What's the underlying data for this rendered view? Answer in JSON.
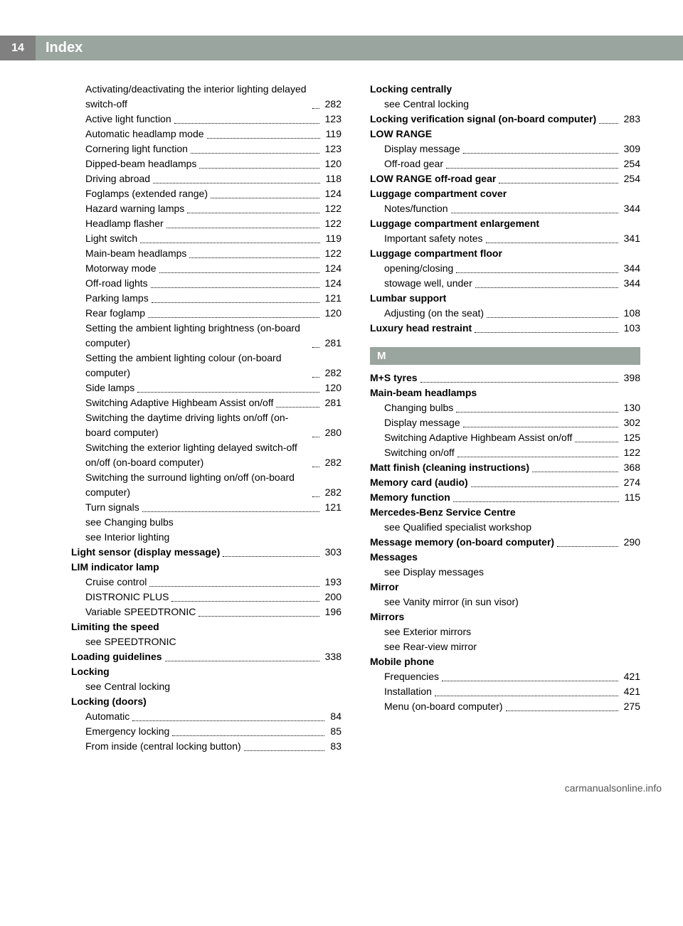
{
  "header": {
    "page_number": "14",
    "title": "Index"
  },
  "left_column": [
    {
      "type": "entry",
      "sub": true,
      "label": "Activating/deactivating the interior lighting delayed switch-off",
      "page": "282"
    },
    {
      "type": "entry",
      "sub": true,
      "label": "Active light function",
      "page": "123"
    },
    {
      "type": "entry",
      "sub": true,
      "label": "Automatic headlamp mode",
      "page": "119"
    },
    {
      "type": "entry",
      "sub": true,
      "label": "Cornering light function",
      "page": "123"
    },
    {
      "type": "entry",
      "sub": true,
      "label": "Dipped-beam headlamps",
      "page": "120"
    },
    {
      "type": "entry",
      "sub": true,
      "label": "Driving abroad",
      "page": "118"
    },
    {
      "type": "entry",
      "sub": true,
      "label": "Foglamps (extended range)",
      "page": "124"
    },
    {
      "type": "entry",
      "sub": true,
      "label": "Hazard warning lamps",
      "page": "122"
    },
    {
      "type": "entry",
      "sub": true,
      "label": "Headlamp flasher",
      "page": "122"
    },
    {
      "type": "entry",
      "sub": true,
      "label": "Light switch",
      "page": "119"
    },
    {
      "type": "entry",
      "sub": true,
      "label": "Main-beam headlamps",
      "page": "122"
    },
    {
      "type": "entry",
      "sub": true,
      "label": "Motorway mode",
      "page": "124"
    },
    {
      "type": "entry",
      "sub": true,
      "label": "Off-road lights",
      "page": "124"
    },
    {
      "type": "entry",
      "sub": true,
      "label": "Parking lamps",
      "page": "121"
    },
    {
      "type": "entry",
      "sub": true,
      "label": "Rear foglamp",
      "page": "120"
    },
    {
      "type": "entry",
      "sub": true,
      "label": "Setting the ambient lighting brightness (on-board computer)",
      "page": "281"
    },
    {
      "type": "entry",
      "sub": true,
      "label": "Setting the ambient lighting colour (on-board computer)",
      "page": "282"
    },
    {
      "type": "entry",
      "sub": true,
      "label": "Side lamps",
      "page": "120"
    },
    {
      "type": "entry",
      "sub": true,
      "label": "Switching Adaptive Highbeam Assist on/off",
      "page": "281"
    },
    {
      "type": "entry",
      "sub": true,
      "label": "Switching the daytime driving lights on/off (on-board computer)",
      "page": "280"
    },
    {
      "type": "entry",
      "sub": true,
      "label": "Switching the exterior lighting delayed switch-off on/off (on-board computer)",
      "page": "282"
    },
    {
      "type": "entry",
      "sub": true,
      "label": "Switching the surround lighting on/off (on-board computer)",
      "page": "282"
    },
    {
      "type": "entry",
      "sub": true,
      "label": "Turn signals",
      "page": "121"
    },
    {
      "type": "text",
      "sub": true,
      "label": "see Changing bulbs"
    },
    {
      "type": "text",
      "sub": true,
      "label": "see Interior lighting"
    },
    {
      "type": "entry",
      "bold": true,
      "label": "Light sensor (display message)",
      "page": "303"
    },
    {
      "type": "heading",
      "label": "LIM indicator lamp"
    },
    {
      "type": "entry",
      "sub": true,
      "label": "Cruise control",
      "page": "193"
    },
    {
      "type": "entry",
      "sub": true,
      "label": "DISTRONIC PLUS",
      "page": "200"
    },
    {
      "type": "entry",
      "sub": true,
      "label": "Variable SPEEDTRONIC",
      "page": "196"
    },
    {
      "type": "heading",
      "label": "Limiting the speed"
    },
    {
      "type": "text",
      "sub": true,
      "label": "see SPEEDTRONIC"
    },
    {
      "type": "entry",
      "bold": true,
      "label": "Loading guidelines",
      "page": "338"
    },
    {
      "type": "heading",
      "label": "Locking"
    },
    {
      "type": "text",
      "sub": true,
      "label": "see Central locking"
    },
    {
      "type": "heading",
      "label": "Locking (doors)"
    },
    {
      "type": "entry",
      "sub": true,
      "label": "Automatic",
      "page": "84"
    },
    {
      "type": "entry",
      "sub": true,
      "label": "Emergency locking",
      "page": "85"
    },
    {
      "type": "entry",
      "sub": true,
      "label": "From inside (central locking button)",
      "page": "83"
    }
  ],
  "right_column": [
    {
      "type": "heading",
      "label": "Locking centrally"
    },
    {
      "type": "text",
      "sub": true,
      "label": "see Central locking"
    },
    {
      "type": "entry",
      "bold": true,
      "label": "Locking verification signal (on-board computer)",
      "page": "283"
    },
    {
      "type": "heading",
      "label": "LOW RANGE"
    },
    {
      "type": "entry",
      "sub": true,
      "label": "Display message",
      "page": "309"
    },
    {
      "type": "entry",
      "sub": true,
      "label": "Off-road gear",
      "page": "254"
    },
    {
      "type": "entry",
      "bold": true,
      "label": "LOW RANGE off-road gear",
      "page": "254"
    },
    {
      "type": "heading",
      "label": "Luggage compartment cover"
    },
    {
      "type": "entry",
      "sub": true,
      "label": "Notes/function",
      "page": "344"
    },
    {
      "type": "heading",
      "label": "Luggage compartment enlargement"
    },
    {
      "type": "entry",
      "sub": true,
      "label": "Important safety notes",
      "page": "341"
    },
    {
      "type": "heading",
      "label": "Luggage compartment floor"
    },
    {
      "type": "entry",
      "sub": true,
      "label": "opening/closing",
      "page": "344"
    },
    {
      "type": "entry",
      "sub": true,
      "label": "stowage well, under",
      "page": "344"
    },
    {
      "type": "heading",
      "label": "Lumbar support"
    },
    {
      "type": "entry",
      "sub": true,
      "label": "Adjusting (on the seat)",
      "page": "108"
    },
    {
      "type": "entry",
      "bold": true,
      "label": "Luxury head restraint",
      "page": "103"
    },
    {
      "type": "section",
      "label": "M"
    },
    {
      "type": "entry",
      "bold": true,
      "label": "M+S tyres",
      "page": "398"
    },
    {
      "type": "heading",
      "label": "Main-beam headlamps"
    },
    {
      "type": "entry",
      "sub": true,
      "label": "Changing bulbs",
      "page": "130"
    },
    {
      "type": "entry",
      "sub": true,
      "label": "Display message",
      "page": "302"
    },
    {
      "type": "entry",
      "sub": true,
      "label": "Switching Adaptive Highbeam Assist on/off",
      "page": "125"
    },
    {
      "type": "entry",
      "sub": true,
      "label": "Switching on/off",
      "page": "122"
    },
    {
      "type": "entry",
      "bold": true,
      "label": "Matt finish (cleaning instructions)",
      "page": "368"
    },
    {
      "type": "entry",
      "bold": true,
      "label": "Memory card (audio)",
      "page": "274"
    },
    {
      "type": "entry",
      "bold": true,
      "label": "Memory function",
      "page": "115"
    },
    {
      "type": "heading",
      "label": "Mercedes-Benz Service Centre"
    },
    {
      "type": "text",
      "sub": true,
      "label": "see Qualified specialist workshop"
    },
    {
      "type": "entry",
      "bold": true,
      "label": "Message memory (on-board computer)",
      "page": "290"
    },
    {
      "type": "heading",
      "label": "Messages"
    },
    {
      "type": "text",
      "sub": true,
      "label": "see Display messages"
    },
    {
      "type": "heading",
      "label": "Mirror"
    },
    {
      "type": "text",
      "sub": true,
      "label": "see Vanity mirror (in sun visor)"
    },
    {
      "type": "heading",
      "label": "Mirrors"
    },
    {
      "type": "text",
      "sub": true,
      "label": "see Exterior mirrors"
    },
    {
      "type": "text",
      "sub": true,
      "label": "see Rear-view mirror"
    },
    {
      "type": "heading",
      "label": "Mobile phone"
    },
    {
      "type": "entry",
      "sub": true,
      "label": "Frequencies",
      "page": "421"
    },
    {
      "type": "entry",
      "sub": true,
      "label": "Installation",
      "page": "421"
    },
    {
      "type": "entry",
      "sub": true,
      "label": "Menu (on-board computer)",
      "page": "275"
    }
  ],
  "footer": {
    "text": "carmanualsonline.info"
  }
}
